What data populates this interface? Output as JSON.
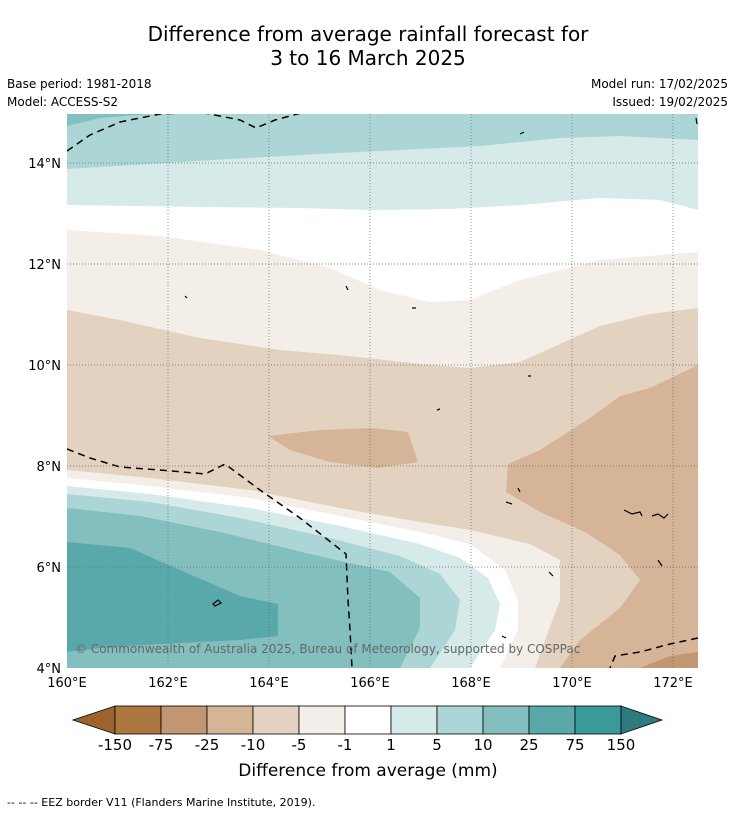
{
  "title": {
    "line1": "Difference from average rainfall forecast for",
    "line2": "3 to 16 March 2025"
  },
  "info": {
    "base_period": "Base period: 1981-2018",
    "model": "Model: ACCESS-S2",
    "model_run": "Model run: 17/02/2025",
    "issued": "Issued: 19/02/2025"
  },
  "map": {
    "lat_labels": [
      "4°N",
      "6°N",
      "8°N",
      "10°N",
      "12°N",
      "14°N"
    ],
    "lon_labels": [
      "160°E",
      "162°E",
      "164°E",
      "166°E",
      "168°E",
      "170°E",
      "172°E"
    ],
    "copyright": "© Commonwealth of Australia 2025, Bureau of Meteorology, supported by COSPPac"
  },
  "colorbar": {
    "labels": [
      "-150",
      "-75",
      "-25",
      "-10",
      "-5",
      "-1",
      "1",
      "5",
      "10",
      "25",
      "75",
      "150"
    ],
    "colors": [
      "#9c6330",
      "#ad7742",
      "#c19670",
      "#d5b497",
      "#e4d2c1",
      "#f4eee9",
      "#ffffff",
      "#d6eae9",
      "#acd5d5",
      "#83bfbf",
      "#5aa9aa",
      "#3a9a9a",
      "#2d7c7b"
    ],
    "title": "Difference from average (mm)"
  },
  "legend": {
    "eez": "--  --  -- EEZ border V11 (Flanders Marine Institute, 2019)."
  }
}
